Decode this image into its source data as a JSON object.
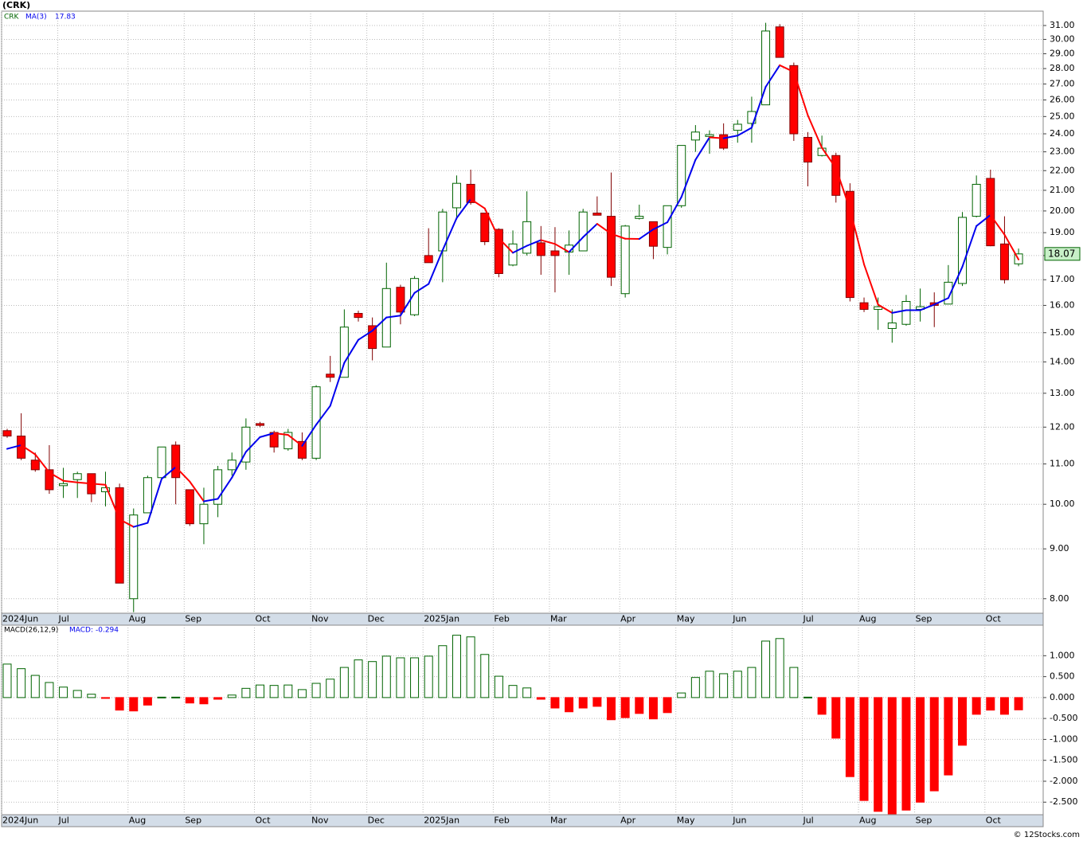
{
  "header": "(CRK)",
  "footer": "© 12Stocks.com",
  "chart_data": [
    {
      "type": "candlestick",
      "symbol": "CRK",
      "log_scale": true,
      "grid": true,
      "up_color": "#006400",
      "down_color": "#ff0000",
      "categories": [
        "2024Jun",
        null,
        null,
        null,
        "Jul",
        null,
        null,
        null,
        null,
        "Aug",
        null,
        null,
        null,
        "Sep",
        null,
        null,
        null,
        null,
        "Oct",
        null,
        null,
        null,
        "Nov",
        null,
        null,
        null,
        "Dec",
        null,
        null,
        null,
        "2025Jan",
        null,
        null,
        null,
        null,
        "Feb",
        null,
        null,
        null,
        "Mar",
        null,
        null,
        null,
        null,
        "Apr",
        null,
        null,
        null,
        "May",
        null,
        null,
        null,
        "Jun",
        null,
        null,
        null,
        null,
        "Jul",
        null,
        null,
        null,
        "Aug",
        null,
        null,
        null,
        "Sep",
        null,
        null,
        null,
        null,
        "Oct",
        null,
        null
      ],
      "open": [
        11.9,
        11.75,
        11.1,
        10.85,
        10.45,
        10.6,
        10.75,
        10.3,
        10.4,
        8.0,
        9.8,
        10.65,
        11.5,
        10.35,
        9.55,
        10.0,
        10.85,
        11.05,
        12.1,
        11.85,
        11.4,
        11.6,
        11.15,
        13.6,
        13.5,
        15.7,
        15.25,
        14.5,
        16.7,
        15.65,
        18.0,
        18.2,
        20.15,
        21.3,
        19.9,
        19.15,
        17.6,
        18.1,
        18.55,
        18.2,
        18.15,
        18.2,
        19.9,
        19.75,
        16.45,
        19.65,
        19.5,
        18.35,
        20.25,
        23.65,
        23.85,
        23.95,
        24.2,
        24.6,
        25.7,
        30.9,
        28.2,
        23.8,
        22.8,
        22.8,
        20.95,
        16.1,
        15.85,
        15.15,
        15.3,
        15.85,
        16.1,
        16.05,
        16.85,
        19.75,
        21.6,
        18.5,
        17.65
      ],
      "high": [
        11.95,
        12.4,
        11.3,
        11.5,
        10.9,
        10.8,
        10.75,
        10.8,
        10.5,
        9.9,
        10.7,
        11.45,
        11.6,
        10.35,
        10.4,
        10.95,
        11.3,
        12.25,
        12.15,
        11.9,
        11.95,
        11.85,
        13.25,
        14.2,
        15.85,
        15.8,
        15.55,
        17.7,
        16.8,
        17.15,
        19.2,
        20.1,
        21.75,
        22.05,
        19.9,
        19.2,
        19.1,
        20.95,
        19.3,
        19.25,
        19.1,
        20.1,
        20.7,
        21.9,
        19.35,
        20.3,
        19.5,
        20.25,
        23.35,
        24.5,
        24.2,
        24.6,
        24.8,
        26.2,
        31.2,
        31.1,
        28.4,
        24.1,
        23.9,
        22.95,
        21.35,
        16.3,
        16.3,
        15.85,
        16.4,
        16.65,
        16.5,
        17.6,
        19.95,
        21.75,
        22.05,
        19.75,
        18.3
      ],
      "low": [
        11.7,
        11.1,
        10.8,
        10.25,
        10.15,
        10.15,
        10.05,
        9.95,
        8.3,
        7.75,
        9.8,
        10.6,
        10.0,
        9.5,
        9.1,
        9.7,
        10.7,
        10.85,
        12.0,
        11.3,
        11.35,
        11.1,
        11.1,
        13.35,
        13.5,
        15.4,
        14.05,
        14.5,
        15.3,
        15.6,
        17.7,
        16.9,
        19.6,
        20.3,
        18.45,
        17.1,
        17.55,
        18.0,
        17.2,
        16.5,
        17.2,
        18.2,
        19.8,
        16.75,
        16.3,
        19.6,
        17.85,
        18.05,
        20.15,
        23.0,
        22.9,
        23.1,
        23.5,
        23.5,
        25.7,
        28.75,
        23.6,
        21.2,
        22.75,
        20.4,
        16.15,
        15.75,
        15.1,
        14.65,
        15.25,
        15.4,
        15.2,
        16.05,
        16.75,
        19.7,
        18.4,
        16.85,
        17.55
      ],
      "close": [
        11.75,
        11.15,
        10.85,
        10.35,
        10.5,
        10.75,
        10.25,
        10.4,
        8.3,
        9.75,
        10.65,
        11.45,
        10.65,
        9.55,
        10.0,
        10.85,
        11.1,
        12.0,
        12.05,
        11.45,
        11.85,
        11.15,
        13.2,
        13.5,
        15.2,
        15.55,
        14.45,
        16.65,
        15.75,
        17.05,
        17.7,
        19.95,
        21.35,
        20.4,
        18.6,
        17.25,
        18.5,
        19.5,
        18.0,
        18.0,
        18.45,
        19.95,
        19.8,
        17.1,
        19.3,
        19.75,
        18.4,
        20.25,
        23.35,
        24.1,
        23.95,
        23.2,
        24.55,
        25.3,
        30.6,
        28.75,
        24.0,
        22.45,
        23.2,
        20.75,
        16.3,
        15.85,
        15.95,
        15.35,
        16.15,
        15.95,
        16.0,
        16.9,
        19.7,
        21.3,
        18.42,
        17.0,
        18.07
      ],
      "ma": {
        "name": "MA(3)",
        "up_color": "#0000ee",
        "down_color": "#ff0000",
        "values": [
          11.4,
          11.5,
          11.25,
          10.78,
          10.57,
          10.53,
          10.5,
          10.47,
          9.65,
          9.48,
          9.57,
          10.62,
          10.92,
          10.55,
          10.07,
          10.13,
          10.65,
          11.32,
          11.72,
          11.83,
          11.78,
          11.48,
          12.07,
          12.62,
          13.97,
          14.75,
          15.07,
          15.55,
          15.62,
          16.48,
          16.83,
          18.23,
          19.67,
          20.57,
          20.12,
          18.75,
          18.12,
          18.42,
          18.67,
          18.5,
          18.15,
          18.8,
          19.4,
          18.95,
          18.73,
          18.72,
          19.15,
          19.47,
          20.67,
          22.57,
          23.8,
          23.75,
          23.9,
          24.35,
          26.82,
          28.22,
          27.78,
          25.07,
          23.22,
          22.13,
          20.08,
          17.63,
          16.03,
          15.72,
          15.82,
          15.82,
          16.03,
          16.28,
          17.53,
          19.3,
          19.81,
          18.91,
          17.83
        ]
      },
      "ylim": [
        7.73,
        32.07
      ],
      "yticks": [
        {
          "value": 8,
          "label": "8.00"
        },
        {
          "value": 9,
          "label": "9.00"
        },
        {
          "value": 10,
          "label": "10.00"
        },
        {
          "value": 11,
          "label": "11.00"
        },
        {
          "value": 12,
          "label": "12.00"
        },
        {
          "value": 13,
          "label": "13.00"
        },
        {
          "value": 14,
          "label": "14.00"
        },
        {
          "value": 15,
          "label": "15.00"
        },
        {
          "value": 16,
          "label": "16.00"
        },
        {
          "value": 17,
          "label": "17.00"
        },
        {
          "value": 18,
          "label": "18.00"
        },
        {
          "value": 19,
          "label": "19.00"
        },
        {
          "value": 20,
          "label": "20.00"
        },
        {
          "value": 21,
          "label": "21.00"
        },
        {
          "value": 22,
          "label": "22.00"
        },
        {
          "value": 23,
          "label": "23.00"
        },
        {
          "value": 24,
          "label": "24.00"
        },
        {
          "value": 25,
          "label": "25.00"
        },
        {
          "value": 26,
          "label": "26.00"
        },
        {
          "value": 27,
          "label": "27.00"
        },
        {
          "value": 28,
          "label": "28.00"
        },
        {
          "value": 29,
          "label": "29.00"
        },
        {
          "value": 30,
          "label": "30.00"
        },
        {
          "value": 31,
          "label": "31.00"
        }
      ]
    },
    {
      "type": "bar",
      "title": "MACD(26,12,9)",
      "value_name": "MACD:",
      "grid": true,
      "up_color": "#006400",
      "down_color": "#ff0000",
      "categories": [
        "2024Jun",
        null,
        null,
        null,
        "Jul",
        null,
        null,
        null,
        null,
        "Aug",
        null,
        null,
        null,
        "Sep",
        null,
        null,
        null,
        null,
        "Oct",
        null,
        null,
        null,
        "Nov",
        null,
        null,
        null,
        "Dec",
        null,
        null,
        null,
        "2025Jan",
        null,
        null,
        null,
        null,
        "Feb",
        null,
        null,
        null,
        "Mar",
        null,
        null,
        null,
        null,
        "Apr",
        null,
        null,
        null,
        "May",
        null,
        null,
        null,
        "Jun",
        null,
        null,
        null,
        null,
        "Jul",
        null,
        null,
        null,
        "Aug",
        null,
        null,
        null,
        "Sep",
        null,
        null,
        null,
        null,
        "Oct",
        null,
        null
      ],
      "values": [
        0.8,
        0.69,
        0.53,
        0.36,
        0.25,
        0.17,
        0.08,
        -0.02,
        -0.3,
        -0.32,
        -0.18,
        0.01,
        0.01,
        -0.13,
        -0.15,
        -0.04,
        0.06,
        0.22,
        0.3,
        0.29,
        0.3,
        0.19,
        0.34,
        0.44,
        0.72,
        0.9,
        0.86,
        0.99,
        0.95,
        0.95,
        0.99,
        1.24,
        1.49,
        1.45,
        1.03,
        0.51,
        0.29,
        0.23,
        -0.04,
        -0.25,
        -0.34,
        -0.25,
        -0.21,
        -0.53,
        -0.48,
        -0.38,
        -0.51,
        -0.36,
        0.11,
        0.48,
        0.63,
        0.57,
        0.63,
        0.72,
        1.35,
        1.41,
        0.72,
        0.01,
        -0.4,
        -0.97,
        -1.89,
        -2.46,
        -2.72,
        -2.78,
        -2.69,
        -2.5,
        -2.23,
        -1.85,
        -1.14,
        -0.4,
        -0.3,
        -0.4,
        -0.294
      ],
      "ylim": [
        -2.8,
        1.73
      ],
      "yticks": [
        {
          "value": 1,
          "label": "1.000"
        },
        {
          "value": 0.5,
          "label": "0.500"
        },
        {
          "value": 0,
          "label": "0.000"
        },
        {
          "value": -0.5,
          "label": "-0.500"
        },
        {
          "value": -1,
          "label": "-1.000"
        },
        {
          "value": -1.5,
          "label": "-1.500"
        },
        {
          "value": -2,
          "label": "-2.000"
        },
        {
          "value": -2.5,
          "label": "-2.500"
        }
      ]
    }
  ]
}
